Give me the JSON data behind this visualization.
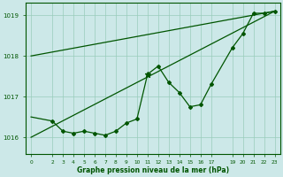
{
  "xlabel": "Graphe pression niveau de la mer (hPa)",
  "background_color": "#cce8e8",
  "grid_color": "#99ccbb",
  "line_color": "#005500",
  "xlim": [
    -0.5,
    23.5
  ],
  "ylim": [
    1015.6,
    1019.3
  ],
  "yticks": [
    1016,
    1017,
    1018,
    1019
  ],
  "xtick_labels": [
    0,
    2,
    3,
    4,
    5,
    6,
    7,
    8,
    9,
    10,
    11,
    12,
    13,
    14,
    15,
    16,
    17,
    19,
    20,
    21,
    22,
    23
  ],
  "line1_x": [
    0,
    23
  ],
  "line1_y": [
    1018.0,
    1019.1
  ],
  "line2_x": [
    0,
    23
  ],
  "line2_y": [
    1016.0,
    1019.1
  ],
  "line3_x": [
    0,
    2,
    3,
    4,
    5,
    6,
    7,
    8,
    9,
    10,
    11,
    12,
    13,
    14,
    15,
    16,
    17,
    19,
    20,
    21,
    22,
    23
  ],
  "line3_y": [
    1016.5,
    1016.4,
    1016.15,
    1016.1,
    1016.15,
    1016.1,
    1016.05,
    1016.15,
    1016.35,
    1016.45,
    1017.55,
    1017.75,
    1017.35,
    1017.1,
    1016.75,
    1016.8,
    1017.3,
    1018.2,
    1018.55,
    1019.05,
    1019.05,
    1019.1
  ],
  "markers_x": [
    2,
    3,
    4,
    5,
    6,
    7,
    8,
    9,
    10,
    11,
    12,
    13,
    14,
    15,
    16,
    17,
    19,
    20,
    21,
    22,
    23
  ],
  "markers_y": [
    1016.4,
    1016.15,
    1016.1,
    1016.15,
    1016.1,
    1016.05,
    1016.15,
    1016.35,
    1016.45,
    1017.55,
    1017.75,
    1017.35,
    1017.1,
    1016.75,
    1016.8,
    1017.3,
    1018.2,
    1018.55,
    1019.05,
    1019.05,
    1019.1
  ],
  "star_x": [
    11
  ],
  "star_y": [
    1017.55
  ]
}
